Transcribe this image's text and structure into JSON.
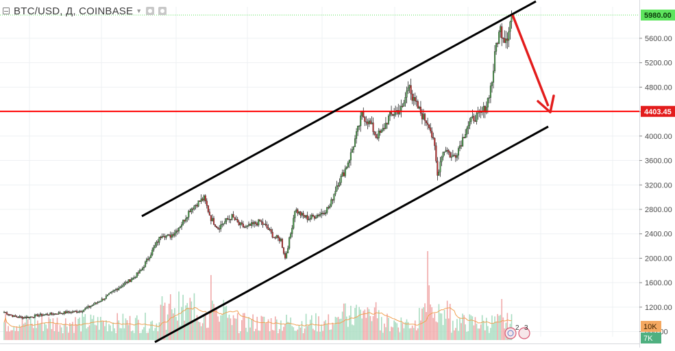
{
  "symbol": {
    "title": "BTC/USD, Д, COINBASE",
    "eye_icon": "eye-icon",
    "settings_icon": "gear-icon"
  },
  "price_axis": {
    "ticks": [
      "5600.00",
      "5200.00",
      "4800.00",
      "4400.00",
      "4000.00",
      "3600.00",
      "3200.00",
      "2800.00",
      "2400.00",
      "2000.00",
      "1600.00",
      "1200.00",
      "800.00"
    ]
  },
  "price_labels": {
    "last": "5980.00",
    "line": "4403.45",
    "volume_1": "10K",
    "volume_2": "7K"
  },
  "event_flags": [
    "2",
    "3"
  ],
  "colors": {
    "up": "#4a9a4a",
    "down": "#bf3030",
    "vol_up": "#a8dcc0",
    "vol_down": "#f0a8a8",
    "ma": "#f0a050",
    "channel": "#000000",
    "horizontal": "#ff0000",
    "last_price": "#55e055"
  },
  "chart_data": {
    "type": "candlestick",
    "title": "BTC/USD, Д, COINBASE",
    "interval": "Д",
    "ylim": [
      750,
      6030
    ],
    "last_price": 5980,
    "horizontal_line": 4403.45,
    "anchors": [
      [
        0,
        1120
      ],
      [
        8,
        1040
      ],
      [
        16,
        1030
      ],
      [
        25,
        1070
      ],
      [
        35,
        1090
      ],
      [
        45,
        1115
      ],
      [
        55,
        1135
      ],
      [
        63,
        1230
      ],
      [
        72,
        1350
      ],
      [
        80,
        1490
      ],
      [
        88,
        1610
      ],
      [
        93,
        1690
      ],
      [
        98,
        1800
      ],
      [
        103,
        2000
      ],
      [
        108,
        2200
      ],
      [
        113,
        2400
      ],
      [
        118,
        2350
      ],
      [
        123,
        2450
      ],
      [
        128,
        2600
      ],
      [
        133,
        2800
      ],
      [
        138,
        2900
      ],
      [
        143,
        2980
      ],
      [
        148,
        2650
      ],
      [
        153,
        2500
      ],
      [
        158,
        2600
      ],
      [
        163,
        2680
      ],
      [
        168,
        2550
      ],
      [
        173,
        2500
      ],
      [
        178,
        2550
      ],
      [
        183,
        2600
      ],
      [
        188,
        2500
      ],
      [
        193,
        2350
      ],
      [
        198,
        2300
      ],
      [
        201,
        2000
      ],
      [
        205,
        2400
      ],
      [
        208,
        2800
      ],
      [
        213,
        2700
      ],
      [
        218,
        2650
      ],
      [
        223,
        2700
      ],
      [
        228,
        2750
      ],
      [
        233,
        2850
      ],
      [
        238,
        3200
      ],
      [
        243,
        3400
      ],
      [
        248,
        3700
      ],
      [
        253,
        4100
      ],
      [
        256,
        4350
      ],
      [
        260,
        4250
      ],
      [
        263,
        4150
      ],
      [
        266,
        4000
      ],
      [
        270,
        4050
      ],
      [
        275,
        4300
      ],
      [
        280,
        4400
      ],
      [
        285,
        4450
      ],
      [
        290,
        4900
      ],
      [
        292,
        4600
      ],
      [
        295,
        4500
      ],
      [
        300,
        4300
      ],
      [
        304,
        4200
      ],
      [
        308,
        3800
      ],
      [
        310,
        3350
      ],
      [
        313,
        3700
      ],
      [
        316,
        3800
      ],
      [
        320,
        3650
      ],
      [
        323,
        3700
      ],
      [
        327,
        3900
      ],
      [
        331,
        4150
      ],
      [
        336,
        4300
      ],
      [
        341,
        4350
      ],
      [
        345,
        4500
      ],
      [
        349,
        4900
      ],
      [
        352,
        5500
      ],
      [
        355,
        5750
      ],
      [
        358,
        5600
      ],
      [
        360,
        5650
      ],
      [
        363,
        5980
      ]
    ],
    "volume_ma_levels": [
      "10K",
      "7K"
    ]
  }
}
